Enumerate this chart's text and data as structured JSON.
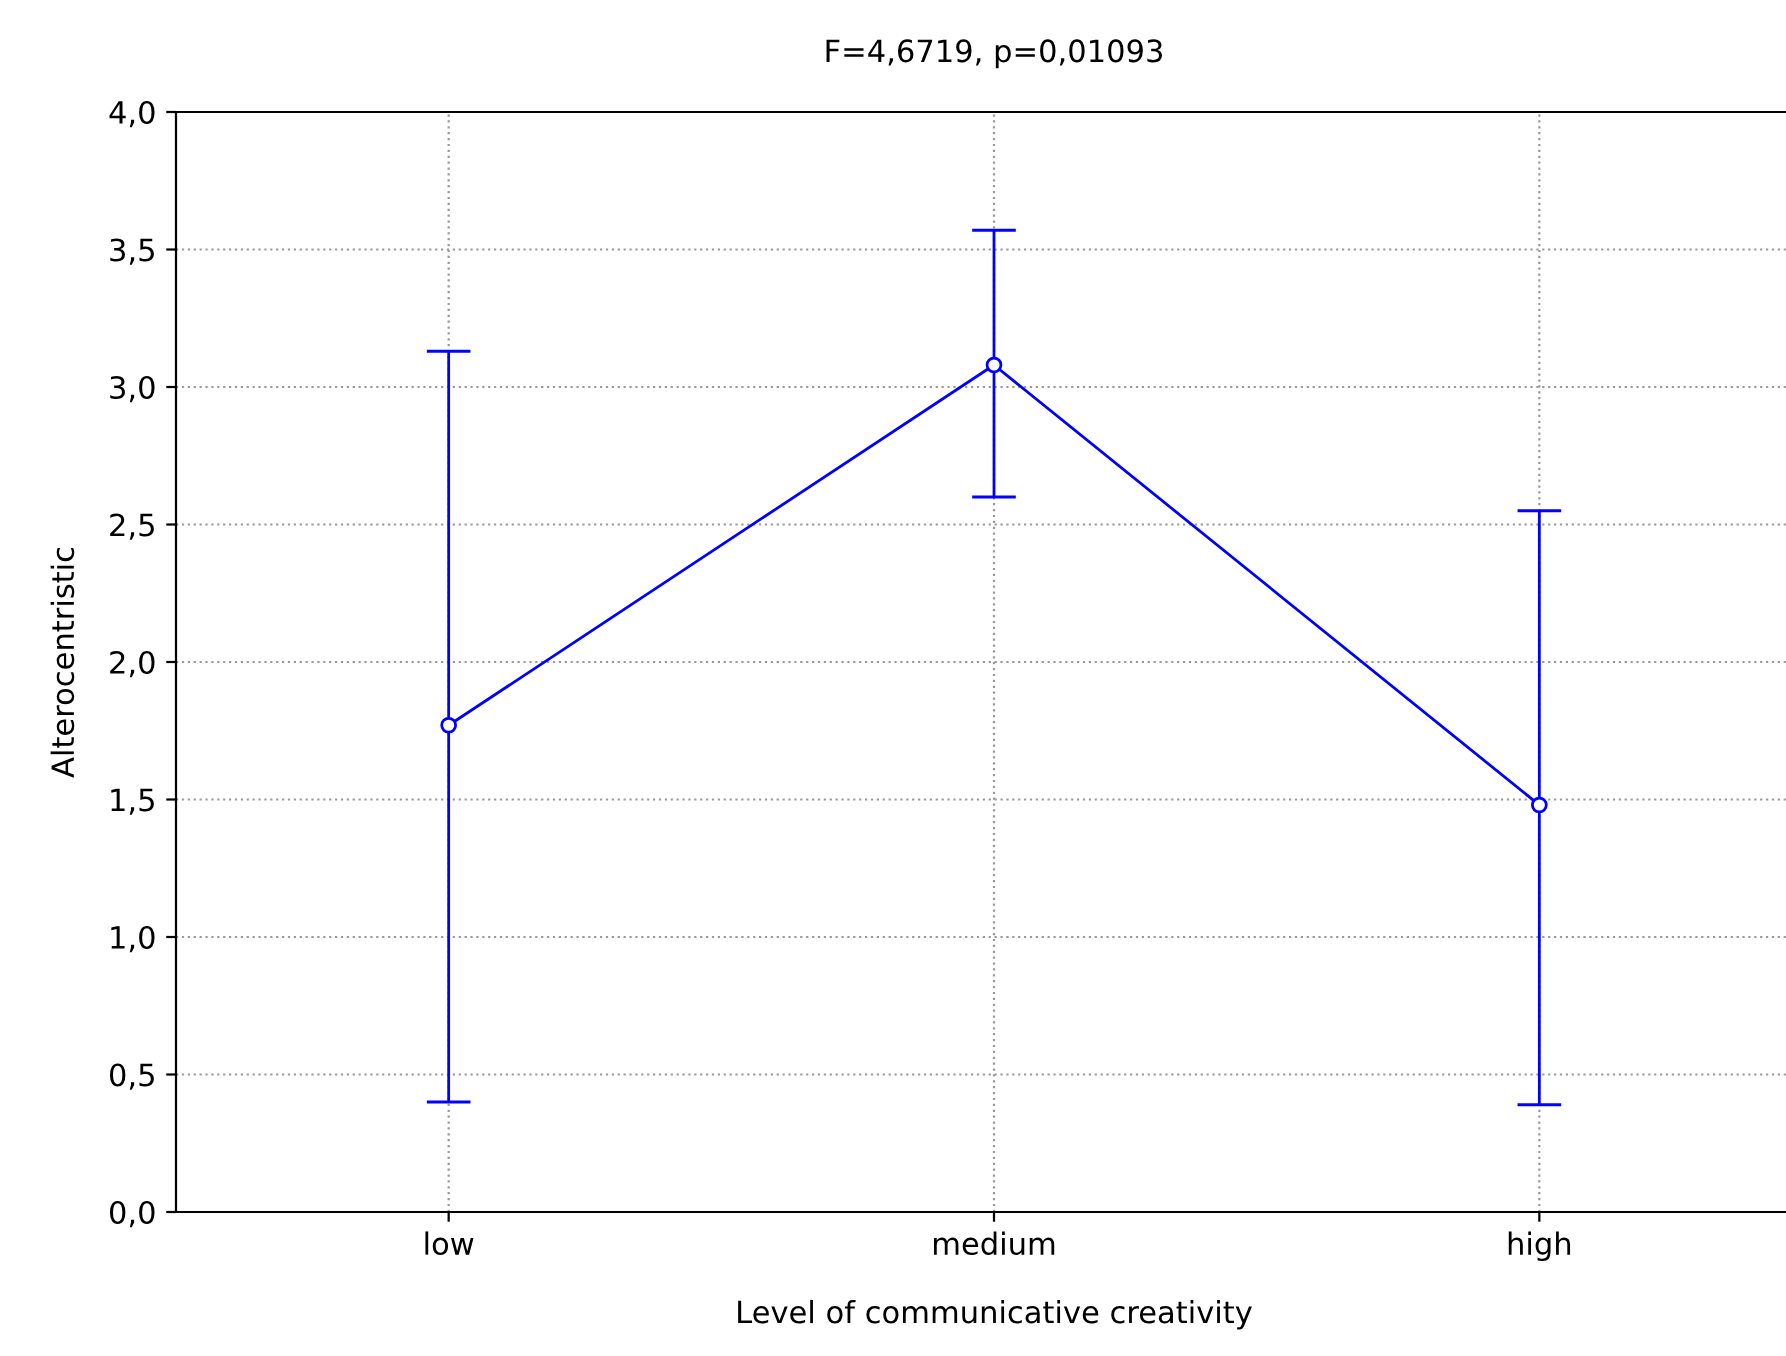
{
  "chart_data": {
    "type": "line",
    "title": "F=4,6719, p=0,01093",
    "xlabel": "Level of communicative creativity",
    "ylabel": "Alterocentristic",
    "categories": [
      "low",
      "medium",
      "high"
    ],
    "series": [
      {
        "color": "#0000ff",
        "values": [
          1.77,
          3.08,
          1.48
        ],
        "errors": [
          [
            0.4,
            3.13
          ],
          [
            2.6,
            3.57
          ],
          [
            0.39,
            2.55
          ]
        ]
      }
    ],
    "ylim": [
      0,
      4
    ],
    "yticks": [
      {
        "value": 0,
        "label": "0,0"
      },
      {
        "value": 0.5,
        "label": "0,5"
      },
      {
        "value": 1,
        "label": "1,0"
      },
      {
        "value": 1.5,
        "label": "1,5"
      },
      {
        "value": 2,
        "label": "2,0"
      },
      {
        "value": 2.5,
        "label": "2,5"
      },
      {
        "value": 3,
        "label": "3,0"
      },
      {
        "value": 3.5,
        "label": "3,5"
      },
      {
        "value": 4,
        "label": "4,0"
      }
    ],
    "grid": true,
    "marker": "circle",
    "line_style": "solid"
  }
}
